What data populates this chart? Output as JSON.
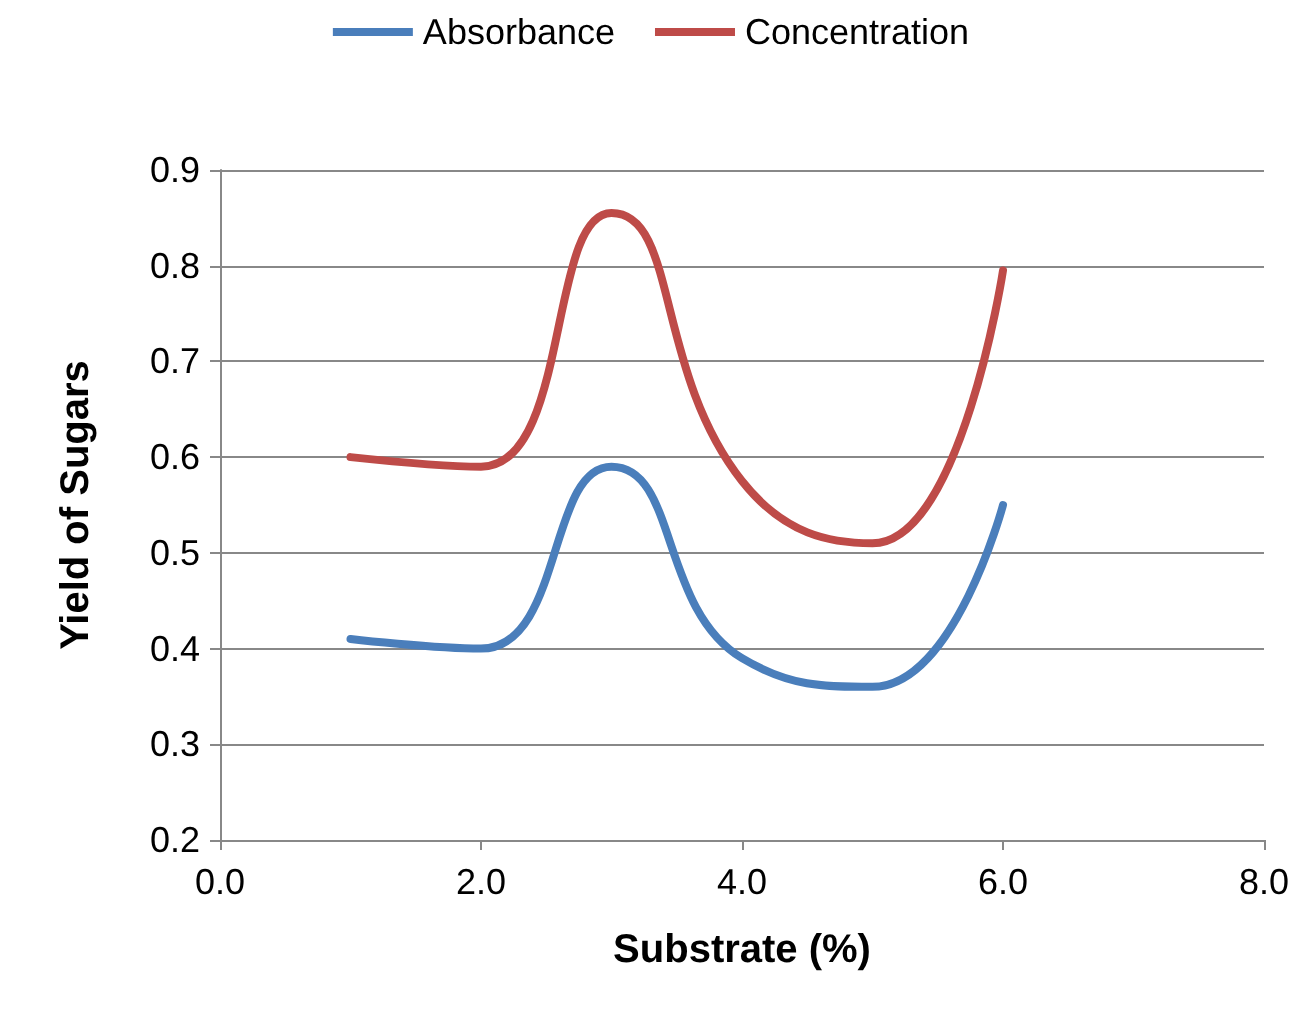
{
  "chart_data": {
    "type": "line",
    "xlabel": "Substrate (%)",
    "ylabel": "Yield of Sugars",
    "x": [
      1,
      2,
      3,
      4,
      5,
      6
    ],
    "series": [
      {
        "name": "Absorbance",
        "color": "#4a7ebb",
        "values": [
          0.41,
          0.4,
          0.59,
          0.39,
          0.36,
          0.55
        ]
      },
      {
        "name": "Concentration",
        "color": "#be4b48",
        "values": [
          0.6,
          0.59,
          0.855,
          0.575,
          0.51,
          0.795
        ]
      }
    ],
    "xlim": [
      0,
      8
    ],
    "xticks": [
      {
        "value": 0,
        "label": "0.0"
      },
      {
        "value": 2,
        "label": "2.0"
      },
      {
        "value": 4,
        "label": "4.0"
      },
      {
        "value": 6,
        "label": "6.0"
      },
      {
        "value": 8,
        "label": "8.0"
      }
    ],
    "ylim": [
      0.2,
      0.9
    ],
    "yticks": [
      0.2,
      0.3,
      0.4,
      0.5,
      0.6,
      0.7,
      0.8,
      0.9
    ],
    "grid": "y",
    "legend": "top",
    "marker": "none",
    "line_style": "solid"
  }
}
